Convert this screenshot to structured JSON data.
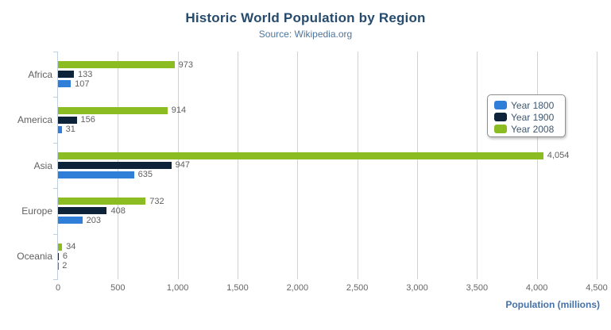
{
  "header": {
    "title": "Historic World Population by Region",
    "subtitle": "Source: Wikipedia.org"
  },
  "export_menu": {
    "icon": "hamburger-icon"
  },
  "x_axis": {
    "title": "Population (millions)"
  },
  "colors": {
    "year_1800": "#2f7ed8",
    "year_1900": "#0d233a",
    "year_2008": "#8bbc21",
    "title_text": "#274b6d",
    "subtitle_text": "#4d759e",
    "axis_title_text": "#4572a7",
    "label_gray": "#606060",
    "gridline": "#d2d2d2",
    "axis_line": "#c0d0e0",
    "legend_border": "#909090"
  },
  "chart_data": {
    "type": "bar",
    "orientation": "horizontal",
    "title": "Historic World Population by Region",
    "subtitle": "Source: Wikipedia.org",
    "categories": [
      "Africa",
      "America",
      "Asia",
      "Europe",
      "Oceania"
    ],
    "series": [
      {
        "name": "Year 1800",
        "color": "#2f7ed8",
        "values": [
          107,
          31,
          635,
          203,
          2
        ]
      },
      {
        "name": "Year 1900",
        "color": "#0d233a",
        "values": [
          133,
          156,
          947,
          408,
          6
        ]
      },
      {
        "name": "Year 2008",
        "color": "#8bbc21",
        "values": [
          973,
          914,
          4054,
          732,
          34
        ]
      }
    ],
    "series_display_order_top_to_bottom": [
      "Year 2008",
      "Year 1900",
      "Year 1800"
    ],
    "xlabel": "Population (millions)",
    "ylabel": "",
    "xlim": [
      0,
      4500
    ],
    "x_ticks": [
      0,
      500,
      1000,
      1500,
      2000,
      2500,
      3000,
      3500,
      4000,
      4500
    ],
    "tick_label_format": "thousands-comma",
    "grid": "vertical-on",
    "data_labels": true,
    "legend_position": "middle-right"
  }
}
